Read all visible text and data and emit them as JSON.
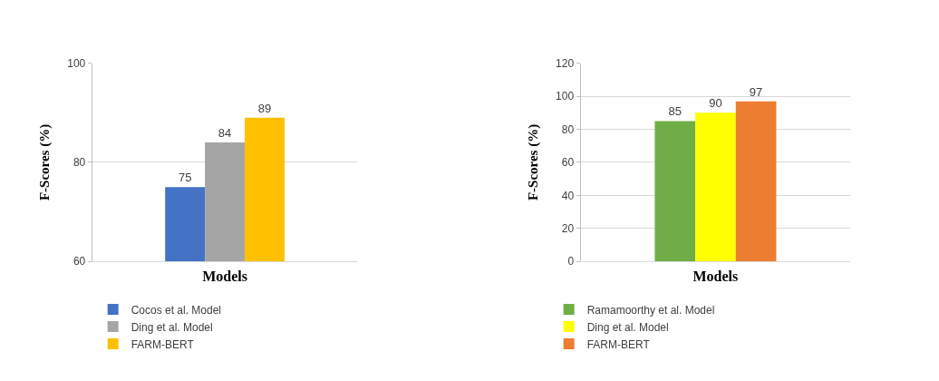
{
  "chart_data": [
    {
      "type": "bar",
      "xlabel": "Models",
      "ylabel": "F-Scores (%)",
      "categories": [
        null
      ],
      "series": [
        {
          "name": "Cocos et al. Model",
          "color": "#4472c4",
          "values": [
            75
          ]
        },
        {
          "name": "Ding et al. Model",
          "color": "#a5a5a5",
          "values": [
            84
          ]
        },
        {
          "name": "FARM-BERT",
          "color": "#ffc000",
          "values": [
            89
          ]
        }
      ],
      "ylim": [
        60,
        100
      ],
      "yticks": [
        60,
        80,
        100
      ],
      "grid": "y",
      "legend": "bottom",
      "data_labels": true
    },
    {
      "type": "bar",
      "xlabel": "Models",
      "ylabel": "F-Scores (%)",
      "categories": [
        null
      ],
      "series": [
        {
          "name": "Ramamoorthy et al. Model",
          "color": "#70ad47",
          "values": [
            85
          ]
        },
        {
          "name": "Ding et al. Model",
          "color": "#ffff00",
          "values": [
            90
          ]
        },
        {
          "name": "FARM-BERT",
          "color": "#ed7d31",
          "values": [
            97
          ]
        }
      ],
      "ylim": [
        0,
        120
      ],
      "yticks": [
        0,
        20,
        40,
        60,
        80,
        100,
        120
      ],
      "grid": "y",
      "legend": "bottom",
      "data_labels": true
    }
  ]
}
